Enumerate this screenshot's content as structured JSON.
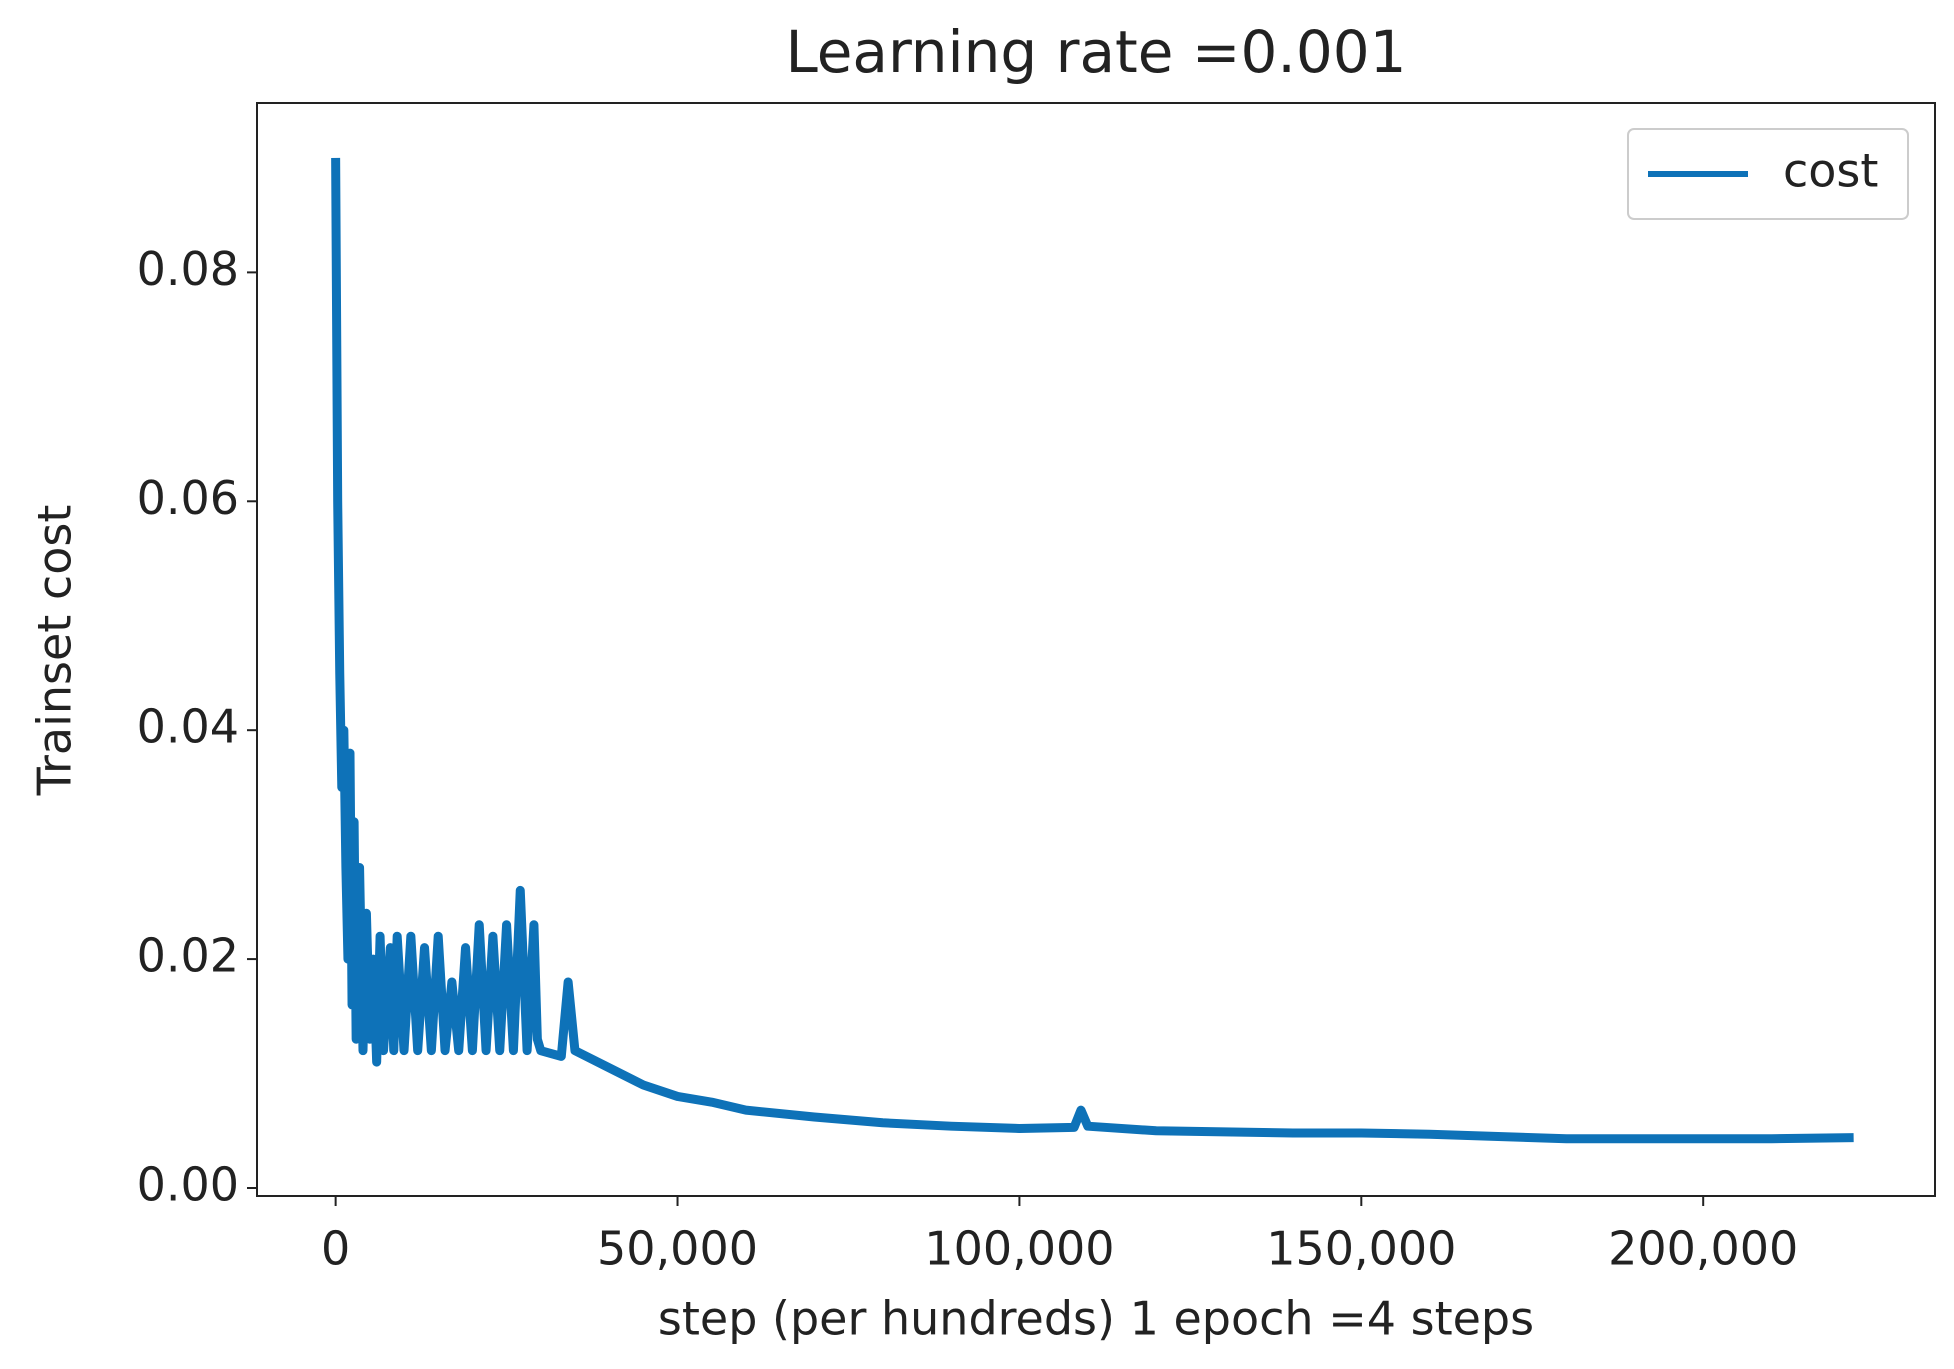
{
  "chart_data": {
    "type": "line",
    "title": "Learning rate =0.001",
    "x_label": "step (per hundreds) 1 epoch =4 steps",
    "y_label": "Trainset cost",
    "x": [
      0,
      300,
      600,
      900,
      1200,
      1500,
      1800,
      2100,
      2400,
      2700,
      3000,
      3500,
      4000,
      4500,
      5000,
      5500,
      6000,
      6500,
      7000,
      8000,
      8500,
      9000,
      10000,
      11000,
      12000,
      13000,
      14000,
      15000,
      16000,
      17000,
      18000,
      19000,
      20000,
      21000,
      22000,
      23000,
      24000,
      25000,
      26000,
      27000,
      28000,
      29000,
      29500,
      30000,
      33000,
      34000,
      35000,
      40000,
      45000,
      50000,
      55000,
      60000,
      70000,
      80000,
      90000,
      100000,
      108000,
      109000,
      110000,
      120000,
      130000,
      140000,
      150000,
      160000,
      170000,
      180000,
      190000,
      200000,
      210000,
      222000
    ],
    "series": [
      {
        "name": "cost",
        "color": "#0e72b8",
        "values": [
          0.09,
          0.06,
          0.045,
          0.035,
          0.04,
          0.028,
          0.02,
          0.038,
          0.016,
          0.032,
          0.013,
          0.028,
          0.012,
          0.024,
          0.013,
          0.02,
          0.011,
          0.022,
          0.012,
          0.021,
          0.012,
          0.022,
          0.012,
          0.022,
          0.012,
          0.021,
          0.012,
          0.022,
          0.012,
          0.018,
          0.012,
          0.021,
          0.012,
          0.023,
          0.012,
          0.022,
          0.012,
          0.023,
          0.012,
          0.026,
          0.012,
          0.023,
          0.013,
          0.012,
          0.0115,
          0.018,
          0.012,
          0.0105,
          0.009,
          0.008,
          0.0075,
          0.0068,
          0.0062,
          0.0057,
          0.0054,
          0.0052,
          0.0053,
          0.0068,
          0.0054,
          0.005,
          0.0049,
          0.0048,
          0.0048,
          0.0047,
          0.0045,
          0.0043,
          0.0043,
          0.0043,
          0.0043,
          0.0044
        ]
      }
    ],
    "xlim": [
      -11500,
      233900
    ],
    "ylim": [
      -0.0007,
      0.0948
    ],
    "xticks": [
      0,
      {
        "value": 50000,
        "label": "50,000"
      },
      {
        "value": 100000,
        "label": "100,000"
      },
      {
        "value": 150000,
        "label": "150,000"
      },
      {
        "value": 200000,
        "label": "200,000"
      }
    ],
    "yticks": [
      {
        "value": 0,
        "label": "0.00"
      },
      0.02,
      0.04,
      0.06,
      0.08
    ],
    "grid": false,
    "legend": "upper right"
  }
}
